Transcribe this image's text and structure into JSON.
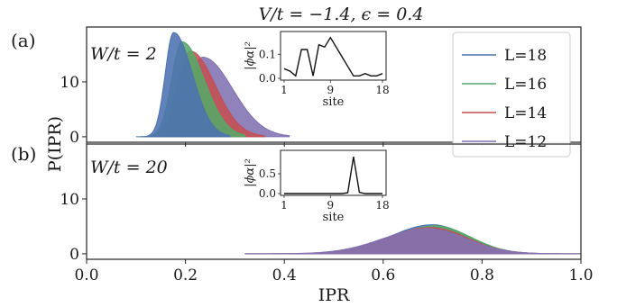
{
  "figure": {
    "title": "V/t = −1.4, ϵ = 0.4",
    "shared_xlabel": "IPR",
    "shared_ylabel": "P(IPR)"
  },
  "chart_data": [
    {
      "type": "area",
      "panel_label": "(a)",
      "annotation": "W/t = 2",
      "xlim": [
        0,
        1
      ],
      "ylim": [
        -1,
        20
      ],
      "x_ticks": [
        "0.0",
        "0.2",
        "0.4",
        "0.6",
        "0.8",
        "1.0"
      ],
      "y_ticks": [
        0,
        10
      ],
      "series": [
        {
          "name": "L=12",
          "color": "#8172b3",
          "peak_x": 0.235,
          "peak_y": 14.5,
          "width_left": 0.033,
          "width_right": 0.06,
          "x_range": [
            0.12,
            0.41
          ]
        },
        {
          "name": "L=14",
          "color": "#c44e52",
          "peak_x": 0.21,
          "peak_y": 15.6,
          "width_left": 0.026,
          "width_right": 0.05,
          "x_range": [
            0.12,
            0.36
          ]
        },
        {
          "name": "L=16",
          "color": "#55a868",
          "peak_x": 0.193,
          "peak_y": 17.3,
          "width_left": 0.021,
          "width_right": 0.045,
          "x_range": [
            0.11,
            0.32
          ]
        },
        {
          "name": "L=18",
          "color": "#4c72b0",
          "peak_x": 0.176,
          "peak_y": 19.0,
          "width_left": 0.017,
          "width_right": 0.038,
          "x_range": [
            0.1,
            0.29
          ]
        }
      ],
      "legend": {
        "placement": "top-right",
        "entries": [
          "L=18",
          "L=16",
          "L=14",
          "L=12"
        ]
      },
      "inset": {
        "type": "line",
        "xlabel": "site",
        "ylabel": "|ϕα|²",
        "x_ticks": [
          1,
          9,
          18
        ],
        "y_ticks": [
          "0.0",
          "0.1"
        ],
        "xlim": [
          1,
          18
        ],
        "ylim": [
          0,
          0.18
        ],
        "x": [
          1,
          2,
          3,
          4,
          5,
          6,
          7,
          8,
          9,
          10,
          11,
          12,
          13,
          14,
          15,
          16,
          17,
          18
        ],
        "y": [
          0.04,
          0.03,
          0.01,
          0.12,
          0.12,
          0.01,
          0.14,
          0.13,
          0.17,
          0.13,
          0.09,
          0.05,
          0.01,
          0.01,
          0.02,
          0.01,
          0.01,
          0.02
        ]
      }
    },
    {
      "type": "area",
      "panel_label": "(b)",
      "annotation": "W/t = 20",
      "xlim": [
        0,
        1
      ],
      "ylim": [
        -1,
        20
      ],
      "x_ticks": [
        "0.0",
        "0.2",
        "0.4",
        "0.6",
        "0.8",
        "1.0"
      ],
      "y_ticks": [
        0,
        10
      ],
      "series": [
        {
          "name": "L=18",
          "color": "#4c72b0",
          "peak_x": 0.7,
          "peak_y": 5.3,
          "width_left": 0.085,
          "width_right": 0.07,
          "x_range": [
            0.32,
            1.0
          ]
        },
        {
          "name": "L=16",
          "color": "#55a868",
          "peak_x": 0.705,
          "peak_y": 5.1,
          "width_left": 0.086,
          "width_right": 0.071,
          "x_range": [
            0.32,
            1.0
          ]
        },
        {
          "name": "L=14",
          "color": "#c44e52",
          "peak_x": 0.695,
          "peak_y": 4.8,
          "width_left": 0.088,
          "width_right": 0.075,
          "x_range": [
            0.32,
            1.0
          ]
        },
        {
          "name": "L=12",
          "color": "#8172b3",
          "peak_x": 0.69,
          "peak_y": 4.6,
          "width_left": 0.09,
          "width_right": 0.078,
          "x_range": [
            0.32,
            1.0
          ]
        }
      ],
      "inset": {
        "type": "line",
        "xlabel": "site",
        "ylabel": "|ϕα|²",
        "x_ticks": [
          1,
          9,
          18
        ],
        "y_ticks": [
          "0.0",
          "0.5"
        ],
        "xlim": [
          1,
          18
        ],
        "ylim": [
          0,
          1.0
        ],
        "x": [
          1,
          2,
          3,
          4,
          5,
          6,
          7,
          8,
          9,
          10,
          11,
          12,
          13,
          14,
          15,
          16,
          17,
          18
        ],
        "y": [
          0.0,
          0.0,
          0.0,
          0.0,
          0.0,
          0.0,
          0.0,
          0.0,
          0.0,
          0.0,
          0.0,
          0.02,
          0.93,
          0.03,
          0.0,
          0.0,
          0.0,
          0.0
        ]
      }
    }
  ]
}
